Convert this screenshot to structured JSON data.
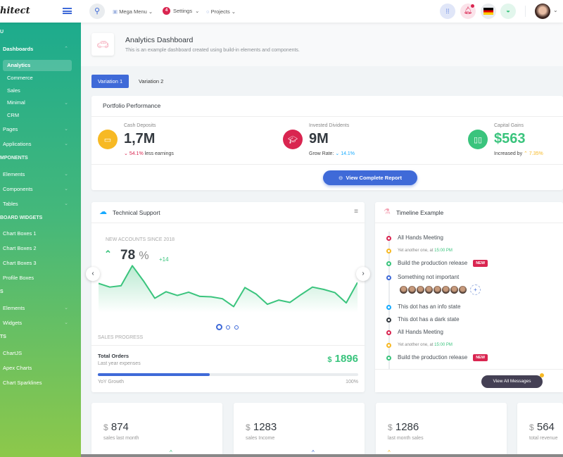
{
  "header": {
    "logo": "hitect",
    "mega_menu": "Mega Menu",
    "settings": "Settings",
    "settings_badge": "4",
    "projects": "Projects"
  },
  "sidebar": {
    "items": [
      {
        "type": "heading",
        "label": "U"
      },
      {
        "type": "item",
        "label": "Dashboards",
        "expanded": true
      },
      {
        "type": "sub",
        "label": "Analytics",
        "active": true
      },
      {
        "type": "sub",
        "label": "Commerce"
      },
      {
        "type": "sub",
        "label": "Sales"
      },
      {
        "type": "sub",
        "label": "Minimal",
        "chevron": true
      },
      {
        "type": "sub",
        "label": "CRM"
      },
      {
        "type": "item",
        "label": "Pages",
        "chevron": true
      },
      {
        "type": "item",
        "label": "Applications",
        "chevron": true
      },
      {
        "type": "heading",
        "label": "MPONENTS"
      },
      {
        "type": "item",
        "label": "Elements",
        "chevron": true
      },
      {
        "type": "item",
        "label": "Components",
        "chevron": true
      },
      {
        "type": "item",
        "label": "Tables",
        "chevron": true
      },
      {
        "type": "heading",
        "label": "BOARD WIDGETS"
      },
      {
        "type": "item",
        "label": "Chart Boxes 1"
      },
      {
        "type": "item",
        "label": "Chart Boxes 2"
      },
      {
        "type": "item",
        "label": "Chart Boxes 3"
      },
      {
        "type": "item",
        "label": "Profile Boxes"
      },
      {
        "type": "heading",
        "label": "S"
      },
      {
        "type": "item",
        "label": "Elements",
        "chevron": true
      },
      {
        "type": "item",
        "label": "Widgets",
        "chevron": true
      },
      {
        "type": "heading",
        "label": "TS"
      },
      {
        "type": "item",
        "label": "ChartJS"
      },
      {
        "type": "item",
        "label": "Apex Charts"
      },
      {
        "type": "item",
        "label": "Chart Sparklines"
      }
    ]
  },
  "page": {
    "title": "Analytics Dashboard",
    "subtitle": "This is an example dashboard created using build-in elements and components.",
    "tabs": [
      "Variation 1",
      "Variation 2"
    ]
  },
  "portfolio": {
    "title": "Portfolio Performance",
    "button": "View Complete Report",
    "stats": [
      {
        "label": "Cash Deposits",
        "value": "1,7M",
        "change": "54.1%",
        "note": "less earnings",
        "color": "#f7b924"
      },
      {
        "label": "Invested Dividents",
        "value": "9M",
        "prefix": "Grow Rate:",
        "change": "14.1%",
        "color": "#d92550"
      },
      {
        "label": "Capital Gains",
        "value": "$563",
        "prefix": "Increased by",
        "change": "7.35%",
        "color": "#3ac47d"
      }
    ]
  },
  "support": {
    "title": "Technical Support",
    "caption": "NEW ACCOUNTS SINCE 2018",
    "value": "78",
    "unit": "%",
    "delta": "+14",
    "sparkline": [
      60,
      52,
      55,
      98,
      65,
      28,
      42,
      34,
      41,
      32,
      31,
      27,
      10,
      51,
      37,
      15,
      24,
      19,
      36,
      52,
      47,
      40,
      18,
      62
    ],
    "sales_progress": "SALES PROGRESS",
    "orders_title": "Total Orders",
    "orders_sub": "Last year expenses",
    "orders_currency": "$",
    "orders_value": "1896",
    "growth_label": "YoY Growth",
    "growth_pct": "100%",
    "progress": 43
  },
  "timeline": {
    "title": "Timeline Example",
    "button": "View All Messages",
    "items": [
      {
        "text": "All Hands Meeting",
        "color": "#d92550"
      },
      {
        "text": "Yet another one, at ",
        "time": "15:00 PM",
        "color": "#f7b924",
        "small": true
      },
      {
        "text": "Build the production release",
        "badge": "NEW",
        "color": "#3ac47d"
      },
      {
        "text": "Something not important",
        "color": "#3f6ad8",
        "avatars": true
      },
      {
        "text": "This dot has an info state",
        "color": "#16aaff"
      },
      {
        "text": "This dot has a dark state",
        "color": "#343a40"
      },
      {
        "text": "All Hands Meeting",
        "color": "#d92550"
      },
      {
        "text": "Yet another one, at ",
        "time": "15:00 PM",
        "color": "#f7b924",
        "small": true
      },
      {
        "text": "Build the production release",
        "badge": "NEW",
        "color": "#3ac47d"
      }
    ]
  },
  "mini_cards": [
    {
      "value": "874",
      "label": "sales last month"
    },
    {
      "value": "1283",
      "label": "sales Income"
    },
    {
      "value": "1286",
      "label": "last month sales"
    },
    {
      "value": "564",
      "label": "total revenue"
    }
  ],
  "currency": "$"
}
